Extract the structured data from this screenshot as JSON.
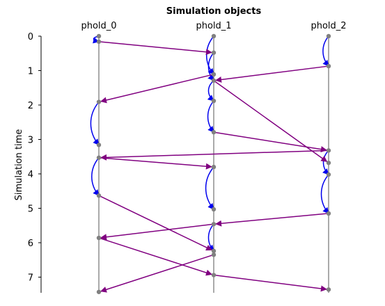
{
  "chart_data": {
    "type": "scatter",
    "title": "Simulation objects",
    "ylabel": "Simulation time",
    "xlabel": "",
    "objects": [
      "phold_0",
      "phold_1",
      "phold_2"
    ],
    "y_ticks": [
      0,
      1,
      2,
      3,
      4,
      5,
      6,
      7
    ],
    "ylim": [
      0,
      7.45
    ],
    "y_inverted": true,
    "colors": {
      "self_event": "#0000ee",
      "remote_event": "#800080",
      "timeline": "#555555",
      "point": "#808080"
    },
    "events": [
      {
        "obj": 0,
        "t": 0.0
      },
      {
        "obj": 0,
        "t": 0.16
      },
      {
        "obj": 0,
        "t": 1.91
      },
      {
        "obj": 0,
        "t": 3.16
      },
      {
        "obj": 0,
        "t": 3.53
      },
      {
        "obj": 0,
        "t": 4.63
      },
      {
        "obj": 0,
        "t": 5.86
      },
      {
        "obj": 0,
        "t": 7.43
      },
      {
        "obj": 1,
        "t": 0.0
      },
      {
        "obj": 1,
        "t": 0.48
      },
      {
        "obj": 1,
        "t": 1.11
      },
      {
        "obj": 1,
        "t": 1.29
      },
      {
        "obj": 1,
        "t": 1.88
      },
      {
        "obj": 1,
        "t": 2.79
      },
      {
        "obj": 1,
        "t": 3.8
      },
      {
        "obj": 1,
        "t": 5.03
      },
      {
        "obj": 1,
        "t": 5.46
      },
      {
        "obj": 1,
        "t": 6.24
      },
      {
        "obj": 1,
        "t": 6.35
      },
      {
        "obj": 1,
        "t": 6.94
      },
      {
        "obj": 2,
        "t": 0.0
      },
      {
        "obj": 2,
        "t": 0.87
      },
      {
        "obj": 2,
        "t": 3.32
      },
      {
        "obj": 2,
        "t": 3.68
      },
      {
        "obj": 2,
        "t": 4.02
      },
      {
        "obj": 2,
        "t": 5.15
      },
      {
        "obj": 2,
        "t": 7.36
      }
    ],
    "messages": [
      {
        "from_obj": 0,
        "from_t": 0.0,
        "to_obj": 0,
        "to_t": 0.16
      },
      {
        "from_obj": 0,
        "from_t": 1.91,
        "to_obj": 0,
        "to_t": 3.16
      },
      {
        "from_obj": 0,
        "from_t": 3.53,
        "to_obj": 0,
        "to_t": 4.63
      },
      {
        "from_obj": 1,
        "from_t": 0.0,
        "to_obj": 1,
        "to_t": 1.11
      },
      {
        "from_obj": 1,
        "from_t": 0.48,
        "to_obj": 1,
        "to_t": 1.29
      },
      {
        "from_obj": 1,
        "from_t": 1.29,
        "to_obj": 1,
        "to_t": 1.88
      },
      {
        "from_obj": 1,
        "from_t": 1.88,
        "to_obj": 1,
        "to_t": 2.79
      },
      {
        "from_obj": 1,
        "from_t": 3.8,
        "to_obj": 1,
        "to_t": 5.03
      },
      {
        "from_obj": 1,
        "from_t": 5.46,
        "to_obj": 1,
        "to_t": 6.24
      },
      {
        "from_obj": 2,
        "from_t": 0.0,
        "to_obj": 2,
        "to_t": 0.87
      },
      {
        "from_obj": 2,
        "from_t": 3.32,
        "to_obj": 2,
        "to_t": 4.02
      },
      {
        "from_obj": 2,
        "from_t": 4.02,
        "to_obj": 2,
        "to_t": 5.15
      },
      {
        "from_obj": 0,
        "from_t": 0.16,
        "to_obj": 1,
        "to_t": 0.48
      },
      {
        "from_obj": 2,
        "from_t": 0.87,
        "to_obj": 1,
        "to_t": 1.29
      },
      {
        "from_obj": 1,
        "from_t": 1.11,
        "to_obj": 0,
        "to_t": 1.91
      },
      {
        "from_obj": 1,
        "from_t": 1.29,
        "to_obj": 2,
        "to_t": 3.68
      },
      {
        "from_obj": 1,
        "from_t": 2.79,
        "to_obj": 2,
        "to_t": 3.32
      },
      {
        "from_obj": 2,
        "from_t": 3.32,
        "to_obj": 0,
        "to_t": 3.53
      },
      {
        "from_obj": 0,
        "from_t": 3.53,
        "to_obj": 1,
        "to_t": 3.8
      },
      {
        "from_obj": 0,
        "from_t": 4.63,
        "to_obj": 1,
        "to_t": 6.24
      },
      {
        "from_obj": 2,
        "from_t": 5.15,
        "to_obj": 1,
        "to_t": 5.46
      },
      {
        "from_obj": 1,
        "from_t": 5.46,
        "to_obj": 0,
        "to_t": 5.86
      },
      {
        "from_obj": 0,
        "from_t": 5.86,
        "to_obj": 1,
        "to_t": 6.94
      },
      {
        "from_obj": 1,
        "from_t": 6.35,
        "to_obj": 0,
        "to_t": 7.43
      },
      {
        "from_obj": 1,
        "from_t": 6.94,
        "to_obj": 2,
        "to_t": 7.36
      }
    ]
  }
}
